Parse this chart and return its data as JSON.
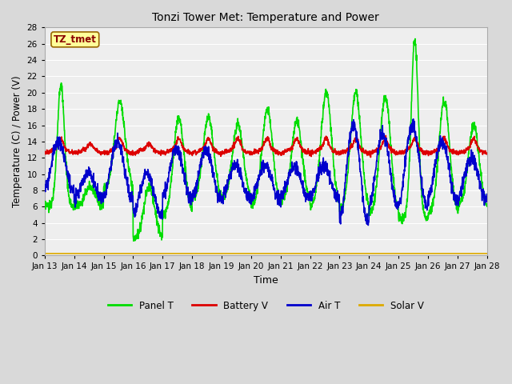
{
  "title": "Tonzi Tower Met: Temperature and Power",
  "xlabel": "Time",
  "ylabel": "Temperature (C) / Power (V)",
  "ylim": [
    0,
    28
  ],
  "yticks": [
    0,
    2,
    4,
    6,
    8,
    10,
    12,
    14,
    16,
    18,
    20,
    22,
    24,
    26,
    28
  ],
  "xlim_days": [
    13,
    28
  ],
  "xtick_labels": [
    "Jan 13",
    "Jan 14",
    "Jan 15",
    "Jan 16",
    "Jan 17",
    "Jan 18",
    "Jan 19",
    "Jan 20",
    "Jan 21",
    "Jan 22",
    "Jan 23",
    "Jan 24",
    "Jan 25",
    "Jan 26",
    "Jan 27",
    "Jan 28"
  ],
  "series": {
    "Panel T": {
      "color": "#00dd00",
      "lw": 1.2
    },
    "Battery V": {
      "color": "#dd0000",
      "lw": 1.2
    },
    "Air T": {
      "color": "#0000cc",
      "lw": 1.2
    },
    "Solar V": {
      "color": "#ddaa00",
      "lw": 1.2
    }
  },
  "annotation_text": "TZ_tmet",
  "bg_color": "#d9d9d9",
  "plot_bg": "#eeeeee",
  "grid_color": "#ffffff"
}
